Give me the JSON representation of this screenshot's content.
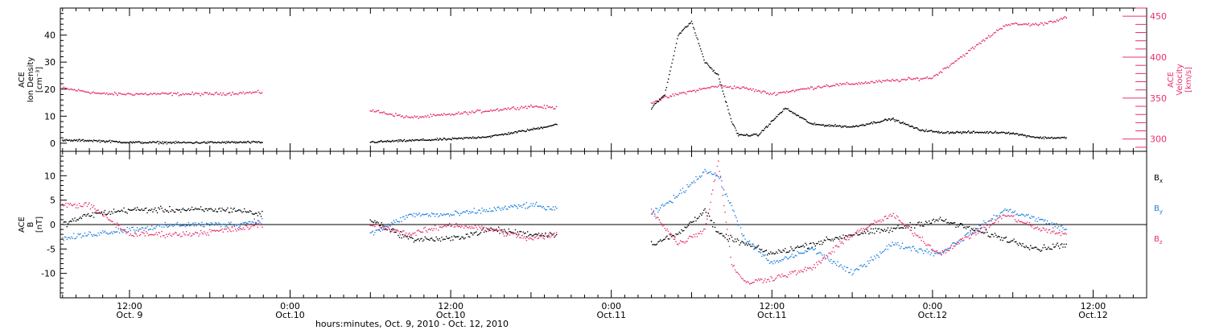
{
  "figure": {
    "xaxis_title": "hours:minutes, Oct. 9, 2010 - Oct. 12, 2010",
    "x_ticks": [
      {
        "time": "12:00",
        "date": "Oct. 9"
      },
      {
        "time": "0:00",
        "date": "Oct.10"
      },
      {
        "time": "12:00",
        "date": "Oct.10"
      },
      {
        "time": "0:00",
        "date": "Oct.11"
      },
      {
        "time": "12:00",
        "date": "Oct.11"
      },
      {
        "time": "0:00",
        "date": "Oct.12"
      },
      {
        "time": "12:00",
        "date": "Oct.12"
      }
    ]
  },
  "chart_data": [
    {
      "type": "scatter",
      "title": "",
      "x_range": [
        "2010-10-09 06:50",
        "2010-10-12 16:00"
      ],
      "y_left_label": [
        "ACE",
        "Ion Density",
        "[cm⁻³]"
      ],
      "y_left_range": [
        -3,
        50
      ],
      "y_left_ticks": [
        "0",
        "10",
        "20",
        "30",
        "40"
      ],
      "y_right_label": [
        "ACE",
        "Velocity",
        "[km/s]"
      ],
      "y_right_range": [
        285,
        460
      ],
      "y_right_ticks": [
        "300",
        "350",
        "400",
        "450"
      ],
      "colors": {
        "density": "#000000",
        "velocity": "#e8306a"
      },
      "series": [
        {
          "key": "density",
          "axis": "left",
          "data": [
            [
              "2010-10-09 07:00",
              1
            ],
            [
              "2010-10-09 09:00",
              1
            ],
            [
              "2010-10-09 12:00",
              0.3
            ],
            [
              "2010-10-09 16:00",
              0.2
            ],
            [
              "2010-10-09 20:00",
              0.3
            ],
            [
              "2010-10-09 22:00",
              0.3
            ],
            [
              "2010-10-10 06:00",
              0.4
            ],
            [
              "2010-10-10 09:00",
              1
            ],
            [
              "2010-10-10 12:00",
              1.5
            ],
            [
              "2010-10-10 15:00",
              2.5
            ],
            [
              "2010-10-10 18:00",
              5
            ],
            [
              "2010-10-10 20:00",
              7
            ],
            [
              "2010-10-11 03:00",
              13
            ],
            [
              "2010-10-11 04:00",
              18
            ],
            [
              "2010-10-11 05:00",
              40
            ],
            [
              "2010-10-11 06:00",
              45
            ],
            [
              "2010-10-11 07:00",
              30
            ],
            [
              "2010-10-11 08:00",
              25
            ],
            [
              "2010-10-11 09:00",
              8
            ],
            [
              "2010-10-11 09:30",
              3
            ],
            [
              "2010-10-11 11:00",
              3
            ],
            [
              "2010-10-11 13:00",
              13
            ],
            [
              "2010-10-11 15:00",
              7
            ],
            [
              "2010-10-11 18:00",
              6
            ],
            [
              "2010-10-11 21:00",
              9
            ],
            [
              "2010-10-11 23:00",
              5
            ],
            [
              "2010-10-12 00:30",
              4
            ],
            [
              "2010-10-12 05:30",
              4
            ],
            [
              "2010-10-12 08:00",
              2
            ],
            [
              "2010-10-12 10:00",
              2
            ]
          ]
        },
        {
          "key": "velocity",
          "axis": "right",
          "data": [
            [
              "2010-10-09 07:00",
              362
            ],
            [
              "2010-10-09 10:00",
              355
            ],
            [
              "2010-10-09 14:00",
              355
            ],
            [
              "2010-10-09 18:00",
              355
            ],
            [
              "2010-10-09 22:00",
              357
            ],
            [
              "2010-10-10 06:00",
              335
            ],
            [
              "2010-10-10 09:00",
              326
            ],
            [
              "2010-10-10 12:00",
              330
            ],
            [
              "2010-10-10 15:00",
              335
            ],
            [
              "2010-10-10 18:00",
              340
            ],
            [
              "2010-10-10 20:00",
              338
            ],
            [
              "2010-10-11 03:00",
              345
            ],
            [
              "2010-10-11 05:00",
              355
            ],
            [
              "2010-10-11 08:00",
              365
            ],
            [
              "2010-10-11 10:00",
              362
            ],
            [
              "2010-10-11 12:00",
              355
            ],
            [
              "2010-10-11 16:00",
              365
            ],
            [
              "2010-10-11 20:00",
              370
            ],
            [
              "2010-10-12 00:00",
              375
            ],
            [
              "2010-10-12 05:30",
              440
            ],
            [
              "2010-10-12 08:00",
              440
            ],
            [
              "2010-10-12 10:00",
              448
            ]
          ]
        }
      ]
    },
    {
      "type": "scatter",
      "title": "",
      "x_range": [
        "2010-10-09 06:50",
        "2010-10-12 16:00"
      ],
      "y_left_label": [
        "ACE",
        "B",
        "[nT]"
      ],
      "y_left_range": [
        -15,
        15
      ],
      "y_left_ticks": [
        "-10",
        "-5",
        "0",
        "5",
        "10"
      ],
      "zero_line": true,
      "legend_position": "right",
      "legend": [
        {
          "name": "B",
          "sub": "x",
          "color": "#000000"
        },
        {
          "name": "B",
          "sub": "y",
          "color": "#1e7fe0"
        },
        {
          "name": "B",
          "sub": "z",
          "color": "#e8306a"
        }
      ],
      "series": [
        {
          "key": "Bx",
          "color": "#000000",
          "data": [
            [
              "2010-10-09 07:00",
              0
            ],
            [
              "2010-10-09 09:00",
              2
            ],
            [
              "2010-10-09 12:00",
              3
            ],
            [
              "2010-10-09 16:00",
              3
            ],
            [
              "2010-10-09 20:00",
              3
            ],
            [
              "2010-10-09 22:00",
              2
            ],
            [
              "2010-10-10 06:00",
              1
            ],
            [
              "2010-10-10 09:00",
              -3
            ],
            [
              "2010-10-10 12:00",
              -3
            ],
            [
              "2010-10-10 15:00",
              -1
            ],
            [
              "2010-10-10 18:00",
              -2
            ],
            [
              "2010-10-10 20:00",
              -2
            ],
            [
              "2010-10-11 03:00",
              -4
            ],
            [
              "2010-10-11 05:00",
              -2
            ],
            [
              "2010-10-11 07:00",
              3
            ],
            [
              "2010-10-11 08:00",
              -2
            ],
            [
              "2010-10-11 10:00",
              -4
            ],
            [
              "2010-10-11 12:00",
              -6
            ],
            [
              "2010-10-11 15:00",
              -4
            ],
            [
              "2010-10-11 18:00",
              -2
            ],
            [
              "2010-10-11 21:00",
              -1
            ],
            [
              "2010-10-12 00:30",
              1
            ],
            [
              "2010-10-12 05:30",
              -3
            ],
            [
              "2010-10-12 08:00",
              -5
            ],
            [
              "2010-10-12 10:00",
              -4
            ]
          ]
        },
        {
          "key": "By",
          "color": "#1e7fe0",
          "data": [
            [
              "2010-10-09 07:00",
              -3
            ],
            [
              "2010-10-09 09:00",
              -2
            ],
            [
              "2010-10-09 12:00",
              -1
            ],
            [
              "2010-10-09 16:00",
              0
            ],
            [
              "2010-10-09 20:00",
              0
            ],
            [
              "2010-10-09 22:00",
              1
            ],
            [
              "2010-10-10 06:00",
              -2
            ],
            [
              "2010-10-10 09:00",
              2
            ],
            [
              "2010-10-10 12:00",
              2
            ],
            [
              "2010-10-10 15:00",
              3
            ],
            [
              "2010-10-10 18:00",
              4
            ],
            [
              "2010-10-10 20:00",
              3
            ],
            [
              "2010-10-11 03:00",
              2
            ],
            [
              "2010-10-11 05:00",
              6
            ],
            [
              "2010-10-11 07:00",
              11
            ],
            [
              "2010-10-11 08:00",
              10
            ],
            [
              "2010-10-11 10:00",
              -3
            ],
            [
              "2010-10-11 12:00",
              -8
            ],
            [
              "2010-10-11 15:00",
              -5
            ],
            [
              "2010-10-11 18:00",
              -10
            ],
            [
              "2010-10-11 21:00",
              -4
            ],
            [
              "2010-10-12 00:30",
              -6
            ],
            [
              "2010-10-12 05:30",
              3
            ],
            [
              "2010-10-12 08:00",
              1
            ],
            [
              "2010-10-12 10:00",
              -1
            ]
          ]
        },
        {
          "key": "Bz",
          "color": "#e8306a",
          "data": [
            [
              "2010-10-09 07:00",
              4
            ],
            [
              "2010-10-09 09:00",
              4
            ],
            [
              "2010-10-09 12:00",
              -2
            ],
            [
              "2010-10-09 16:00",
              -2
            ],
            [
              "2010-10-09 20:00",
              -1
            ],
            [
              "2010-10-09 22:00",
              0
            ],
            [
              "2010-10-10 06:00",
              0
            ],
            [
              "2010-10-10 09:00",
              -2
            ],
            [
              "2010-10-10 12:00",
              0
            ],
            [
              "2010-10-10 15:00",
              -1
            ],
            [
              "2010-10-10 18:00",
              -3
            ],
            [
              "2010-10-10 20:00",
              -2
            ],
            [
              "2010-10-11 03:00",
              3
            ],
            [
              "2010-10-11 05:00",
              -4
            ],
            [
              "2010-10-11 07:00",
              -1
            ],
            [
              "2010-10-11 08:00",
              13
            ],
            [
              "2010-10-11 09:00",
              -8
            ],
            [
              "2010-10-11 10:00",
              -12
            ],
            [
              "2010-10-11 12:00",
              -11
            ],
            [
              "2010-10-11 15:00",
              -9
            ],
            [
              "2010-10-11 18:00",
              -2
            ],
            [
              "2010-10-11 21:00",
              2
            ],
            [
              "2010-10-12 00:30",
              -6
            ],
            [
              "2010-10-12 05:30",
              2
            ],
            [
              "2010-10-12 08:00",
              -1
            ],
            [
              "2010-10-12 10:00",
              -2
            ]
          ]
        }
      ]
    }
  ]
}
